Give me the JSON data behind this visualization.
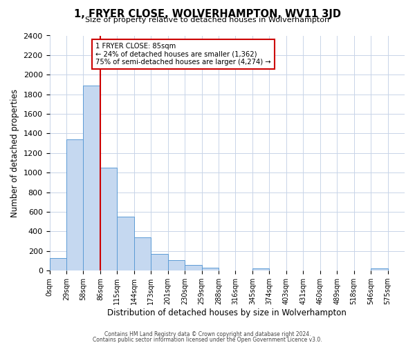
{
  "title": "1, FRYER CLOSE, WOLVERHAMPTON, WV11 3JD",
  "subtitle": "Size of property relative to detached houses in Wolverhampton",
  "xlabel": "Distribution of detached houses by size in Wolverhampton",
  "ylabel": "Number of detached properties",
  "bin_labels": [
    "0sqm",
    "29sqm",
    "58sqm",
    "86sqm",
    "115sqm",
    "144sqm",
    "173sqm",
    "201sqm",
    "230sqm",
    "259sqm",
    "288sqm",
    "316sqm",
    "345sqm",
    "374sqm",
    "403sqm",
    "431sqm",
    "460sqm",
    "489sqm",
    "518sqm",
    "546sqm",
    "575sqm"
  ],
  "bar_heights": [
    130,
    1340,
    1890,
    1050,
    550,
    340,
    170,
    110,
    60,
    30,
    0,
    0,
    20,
    0,
    0,
    0,
    0,
    0,
    0,
    25,
    0
  ],
  "bar_color": "#c5d8f0",
  "bar_edge_color": "#5b9bd5",
  "ylim": [
    0,
    2400
  ],
  "yticks": [
    0,
    200,
    400,
    600,
    800,
    1000,
    1200,
    1400,
    1600,
    1800,
    2000,
    2200,
    2400
  ],
  "vline_x": 3,
  "vline_color": "#cc0000",
  "annotation_title": "1 FRYER CLOSE: 85sqm",
  "annotation_line1": "← 24% of detached houses are smaller (1,362)",
  "annotation_line2": "75% of semi-detached houses are larger (4,274) →",
  "annotation_box_color": "#cc0000",
  "footer1": "Contains HM Land Registry data © Crown copyright and database right 2024.",
  "footer2": "Contains public sector information licensed under the Open Government Licence v3.0.",
  "background_color": "#ffffff",
  "grid_color": "#c8d4e8"
}
